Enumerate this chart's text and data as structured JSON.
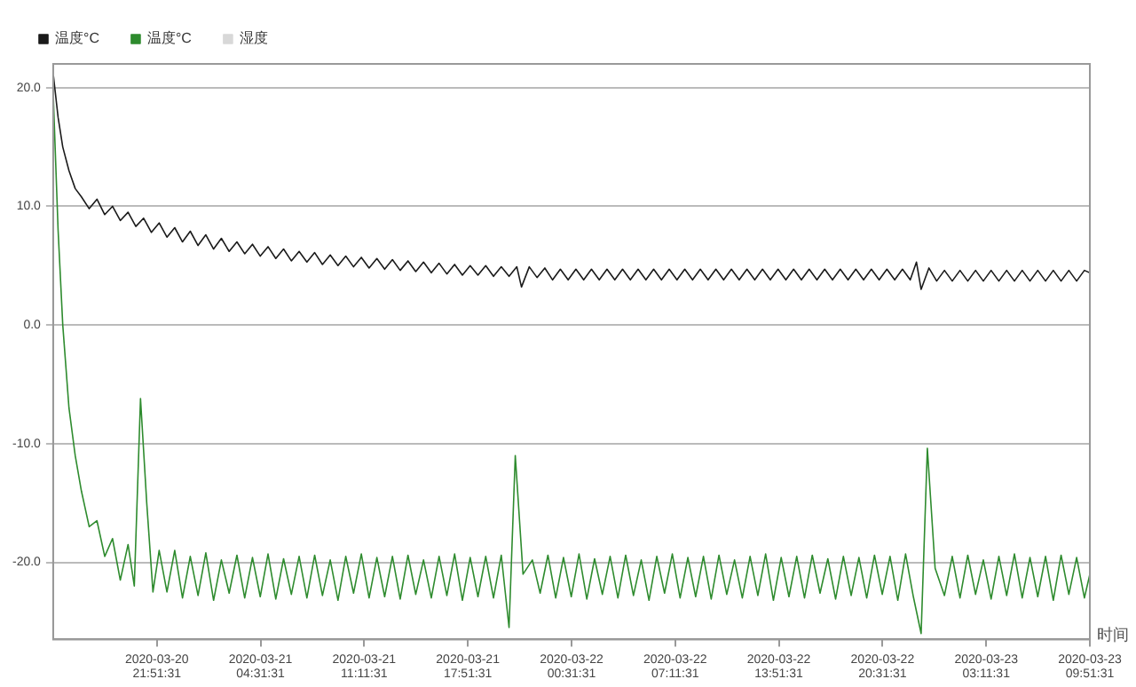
{
  "chart_data": {
    "type": "line",
    "xlabel": "时间",
    "legend": "top left",
    "grid": "y",
    "marker": "none",
    "line_style": "solid",
    "xlim": [
      "2020-03-20T15:11",
      "2020-03-23T09:51"
    ],
    "ylim": [
      -26.5,
      22
    ],
    "yticks": [
      {
        "value": 20,
        "label": "20.0"
      },
      {
        "value": 10,
        "label": "10.0"
      },
      {
        "value": 0,
        "label": "0.0"
      },
      {
        "value": -10,
        "label": "-10.0"
      },
      {
        "value": -20,
        "label": "-20.0"
      }
    ],
    "xticks": [
      {
        "value": "2020-03-20T21:51",
        "label": "2020-03-20 21:51:31"
      },
      {
        "value": "2020-03-21T04:31",
        "label": "2020-03-21 04:31:31"
      },
      {
        "value": "2020-03-21T11:11",
        "label": "2020-03-21 11:11:31"
      },
      {
        "value": "2020-03-21T17:51",
        "label": "2020-03-21 17:51:31"
      },
      {
        "value": "2020-03-22T00:31",
        "label": "2020-03-22 00:31:31"
      },
      {
        "value": "2020-03-22T07:11",
        "label": "2020-03-22 07:11:31"
      },
      {
        "value": "2020-03-22T13:51",
        "label": "2020-03-22 13:51:31"
      },
      {
        "value": "2020-03-22T20:31",
        "label": "2020-03-22 20:31:31"
      },
      {
        "value": "2020-03-23T03:11",
        "label": "2020-03-23 03:11:31"
      },
      {
        "value": "2020-03-23T09:51",
        "label": "2020-03-23 09:51:31"
      }
    ],
    "series": [
      {
        "name": "温度°C",
        "color": "#1a1a1a",
        "x": [
          "2020-03-20T15:12",
          "2020-03-20T15:30",
          "2020-03-20T15:48",
          "2020-03-20T16:12",
          "2020-03-20T16:36",
          "2020-03-20T17:00",
          "2020-03-20T17:30",
          "2020-03-20T18:00",
          "2020-03-20T18:30",
          "2020-03-20T19:00",
          "2020-03-20T19:30",
          "2020-03-20T20:00",
          "2020-03-20T20:30",
          "2020-03-20T21:00",
          "2020-03-20T21:30",
          "2020-03-20T22:00",
          "2020-03-20T22:30",
          "2020-03-20T23:00",
          "2020-03-20T23:30",
          "2020-03-21T00:00",
          "2020-03-21T00:30",
          "2020-03-21T01:00",
          "2020-03-21T01:30",
          "2020-03-21T02:00",
          "2020-03-21T02:30",
          "2020-03-21T03:00",
          "2020-03-21T03:30",
          "2020-03-21T04:00",
          "2020-03-21T04:30",
          "2020-03-21T05:00",
          "2020-03-21T05:30",
          "2020-03-21T06:00",
          "2020-03-21T06:30",
          "2020-03-21T07:00",
          "2020-03-21T07:30",
          "2020-03-21T08:00",
          "2020-03-21T08:30",
          "2020-03-21T09:00",
          "2020-03-21T09:30",
          "2020-03-21T10:00",
          "2020-03-21T10:30",
          "2020-03-21T11:00",
          "2020-03-21T11:30",
          "2020-03-21T12:00",
          "2020-03-21T12:30",
          "2020-03-21T13:00",
          "2020-03-21T13:30",
          "2020-03-21T14:00",
          "2020-03-21T14:30",
          "2020-03-21T15:00",
          "2020-03-21T15:30",
          "2020-03-21T16:00",
          "2020-03-21T16:30",
          "2020-03-21T17:00",
          "2020-03-21T17:30",
          "2020-03-21T18:00",
          "2020-03-21T18:30",
          "2020-03-21T19:00",
          "2020-03-21T19:30",
          "2020-03-21T20:00",
          "2020-03-21T20:30",
          "2020-03-21T21:00",
          "2020-03-21T21:18",
          "2020-03-21T21:48",
          "2020-03-21T22:18",
          "2020-03-21T22:48",
          "2020-03-21T23:18",
          "2020-03-21T23:48",
          "2020-03-22T00:18",
          "2020-03-22T00:48",
          "2020-03-22T01:18",
          "2020-03-22T01:48",
          "2020-03-22T02:18",
          "2020-03-22T02:48",
          "2020-03-22T03:18",
          "2020-03-22T03:48",
          "2020-03-22T04:18",
          "2020-03-22T04:48",
          "2020-03-22T05:18",
          "2020-03-22T05:48",
          "2020-03-22T06:18",
          "2020-03-22T06:48",
          "2020-03-22T07:18",
          "2020-03-22T07:48",
          "2020-03-22T08:18",
          "2020-03-22T08:48",
          "2020-03-22T09:18",
          "2020-03-22T09:48",
          "2020-03-22T10:18",
          "2020-03-22T10:48",
          "2020-03-22T11:18",
          "2020-03-22T11:48",
          "2020-03-22T12:18",
          "2020-03-22T12:48",
          "2020-03-22T13:18",
          "2020-03-22T13:48",
          "2020-03-22T14:18",
          "2020-03-22T14:48",
          "2020-03-22T15:18",
          "2020-03-22T15:48",
          "2020-03-22T16:18",
          "2020-03-22T16:48",
          "2020-03-22T17:18",
          "2020-03-22T17:48",
          "2020-03-22T18:18",
          "2020-03-22T18:48",
          "2020-03-22T19:18",
          "2020-03-22T19:48",
          "2020-03-22T20:18",
          "2020-03-22T20:48",
          "2020-03-22T21:18",
          "2020-03-22T21:48",
          "2020-03-22T22:18",
          "2020-03-22T22:42",
          "2020-03-22T23:00",
          "2020-03-22T23:30",
          "2020-03-23T00:00",
          "2020-03-23T00:30",
          "2020-03-23T01:00",
          "2020-03-23T01:30",
          "2020-03-23T02:00",
          "2020-03-23T02:30",
          "2020-03-23T03:00",
          "2020-03-23T03:30",
          "2020-03-23T04:00",
          "2020-03-23T04:30",
          "2020-03-23T05:00",
          "2020-03-23T05:30",
          "2020-03-23T06:00",
          "2020-03-23T06:30",
          "2020-03-23T07:00",
          "2020-03-23T07:30",
          "2020-03-23T08:00",
          "2020-03-23T08:30",
          "2020-03-23T09:00",
          "2020-03-23T09:30",
          "2020-03-23T09:51"
        ],
        "values": [
          21,
          17.5,
          15,
          13,
          11.5,
          10.8,
          9.8,
          10.6,
          9.3,
          10.0,
          8.8,
          9.5,
          8.3,
          9.0,
          7.8,
          8.6,
          7.4,
          8.2,
          7.0,
          7.9,
          6.7,
          7.6,
          6.4,
          7.3,
          6.2,
          7.0,
          6.0,
          6.8,
          5.8,
          6.6,
          5.6,
          6.4,
          5.4,
          6.2,
          5.3,
          6.1,
          5.1,
          5.9,
          5.0,
          5.8,
          4.9,
          5.7,
          4.8,
          5.6,
          4.7,
          5.5,
          4.6,
          5.4,
          4.5,
          5.3,
          4.4,
          5.2,
          4.3,
          5.1,
          4.2,
          5.0,
          4.2,
          5.0,
          4.1,
          4.9,
          4.1,
          4.9,
          3.2,
          4.9,
          4.0,
          4.8,
          3.8,
          4.7,
          3.8,
          4.7,
          3.8,
          4.7,
          3.8,
          4.7,
          3.8,
          4.7,
          3.8,
          4.7,
          3.8,
          4.7,
          3.8,
          4.7,
          3.8,
          4.7,
          3.8,
          4.7,
          3.8,
          4.7,
          3.8,
          4.7,
          3.8,
          4.7,
          3.8,
          4.7,
          3.8,
          4.7,
          3.8,
          4.7,
          3.8,
          4.7,
          3.8,
          4.7,
          3.8,
          4.7,
          3.8,
          4.7,
          3.8,
          4.7,
          3.8,
          4.7,
          3.8,
          4.7,
          3.8,
          5.3,
          3.0,
          4.8,
          3.7,
          4.6,
          3.7,
          4.6,
          3.7,
          4.6,
          3.7,
          4.6,
          3.7,
          4.6,
          3.7,
          4.6,
          3.7,
          4.6,
          3.7,
          4.6,
          3.7,
          4.6,
          3.7,
          4.6,
          4.4
        ]
      },
      {
        "name": "温度°C",
        "color": "#2e8b2e",
        "x": [
          "2020-03-20T15:12",
          "2020-03-20T15:30",
          "2020-03-20T15:48",
          "2020-03-20T16:12",
          "2020-03-20T16:36",
          "2020-03-20T17:00",
          "2020-03-20T17:30",
          "2020-03-20T18:00",
          "2020-03-20T18:30",
          "2020-03-20T19:00",
          "2020-03-20T19:30",
          "2020-03-20T20:00",
          "2020-03-20T20:24",
          "2020-03-20T20:48",
          "2020-03-20T21:12",
          "2020-03-20T21:36",
          "2020-03-20T22:00",
          "2020-03-20T22:30",
          "2020-03-20T23:00",
          "2020-03-20T23:30",
          "2020-03-21T00:00",
          "2020-03-21T00:30",
          "2020-03-21T01:00",
          "2020-03-21T01:30",
          "2020-03-21T02:00",
          "2020-03-21T02:30",
          "2020-03-21T03:00",
          "2020-03-21T03:30",
          "2020-03-21T04:00",
          "2020-03-21T04:30",
          "2020-03-21T05:00",
          "2020-03-21T05:30",
          "2020-03-21T06:00",
          "2020-03-21T06:30",
          "2020-03-21T07:00",
          "2020-03-21T07:30",
          "2020-03-21T08:00",
          "2020-03-21T08:30",
          "2020-03-21T09:00",
          "2020-03-21T09:30",
          "2020-03-21T10:00",
          "2020-03-21T10:30",
          "2020-03-21T11:00",
          "2020-03-21T11:30",
          "2020-03-21T12:00",
          "2020-03-21T12:30",
          "2020-03-21T13:00",
          "2020-03-21T13:30",
          "2020-03-21T14:00",
          "2020-03-21T14:30",
          "2020-03-21T15:00",
          "2020-03-21T15:30",
          "2020-03-21T16:00",
          "2020-03-21T16:30",
          "2020-03-21T17:00",
          "2020-03-21T17:30",
          "2020-03-21T18:00",
          "2020-03-21T18:30",
          "2020-03-21T19:00",
          "2020-03-21T19:30",
          "2020-03-21T20:00",
          "2020-03-21T20:30",
          "2020-03-21T20:54",
          "2020-03-21T21:24",
          "2020-03-21T22:00",
          "2020-03-21T22:30",
          "2020-03-21T23:00",
          "2020-03-21T23:30",
          "2020-03-22T00:00",
          "2020-03-22T00:30",
          "2020-03-22T01:00",
          "2020-03-22T01:30",
          "2020-03-22T02:00",
          "2020-03-22T02:30",
          "2020-03-22T03:00",
          "2020-03-22T03:30",
          "2020-03-22T04:00",
          "2020-03-22T04:30",
          "2020-03-22T05:00",
          "2020-03-22T05:30",
          "2020-03-22T06:00",
          "2020-03-22T06:30",
          "2020-03-22T07:00",
          "2020-03-22T07:30",
          "2020-03-22T08:00",
          "2020-03-22T08:30",
          "2020-03-22T09:00",
          "2020-03-22T09:30",
          "2020-03-22T10:00",
          "2020-03-22T10:30",
          "2020-03-22T11:00",
          "2020-03-22T11:30",
          "2020-03-22T12:00",
          "2020-03-22T12:30",
          "2020-03-22T13:00",
          "2020-03-22T13:30",
          "2020-03-22T14:00",
          "2020-03-22T14:30",
          "2020-03-22T15:00",
          "2020-03-22T15:30",
          "2020-03-22T16:00",
          "2020-03-22T16:30",
          "2020-03-22T17:00",
          "2020-03-22T17:30",
          "2020-03-22T18:00",
          "2020-03-22T18:30",
          "2020-03-22T19:00",
          "2020-03-22T19:30",
          "2020-03-22T20:00",
          "2020-03-22T20:30",
          "2020-03-22T21:00",
          "2020-03-22T21:30",
          "2020-03-22T22:00",
          "2020-03-22T22:30",
          "2020-03-22T23:00",
          "2020-03-22T23:24",
          "2020-03-22T23:54",
          "2020-03-23T00:30",
          "2020-03-23T01:00",
          "2020-03-23T01:30",
          "2020-03-23T02:00",
          "2020-03-23T02:30",
          "2020-03-23T03:00",
          "2020-03-23T03:30",
          "2020-03-23T04:00",
          "2020-03-23T04:30",
          "2020-03-23T05:00",
          "2020-03-23T05:30",
          "2020-03-23T06:00",
          "2020-03-23T06:30",
          "2020-03-23T07:00",
          "2020-03-23T07:30",
          "2020-03-23T08:00",
          "2020-03-23T08:30",
          "2020-03-23T09:00",
          "2020-03-23T09:30",
          "2020-03-23T09:51"
        ],
        "values": [
          19,
          8,
          0,
          -7,
          -11,
          -14,
          -17,
          -16.5,
          -19.5,
          -18,
          -21.5,
          -18.5,
          -22,
          -6.2,
          -15,
          -22.5,
          -19,
          -22.5,
          -19,
          -23,
          -19.5,
          -22.8,
          -19.2,
          -23.2,
          -19.8,
          -22.6,
          -19.4,
          -23,
          -19.6,
          -22.9,
          -19.3,
          -23.1,
          -19.7,
          -22.7,
          -19.5,
          -23,
          -19.4,
          -22.8,
          -19.8,
          -23.2,
          -19.5,
          -22.6,
          -19.3,
          -23,
          -19.6,
          -22.9,
          -19.5,
          -23.1,
          -19.4,
          -22.7,
          -19.8,
          -23,
          -19.5,
          -22.8,
          -19.3,
          -23.2,
          -19.6,
          -22.9,
          -19.5,
          -23,
          -19.4,
          -25.5,
          -11,
          -21,
          -19.8,
          -22.6,
          -19.4,
          -23,
          -19.6,
          -22.9,
          -19.3,
          -23.1,
          -19.7,
          -22.7,
          -19.5,
          -23,
          -19.4,
          -22.8,
          -19.8,
          -23.2,
          -19.5,
          -22.6,
          -19.3,
          -23,
          -19.6,
          -22.9,
          -19.5,
          -23.1,
          -19.4,
          -22.7,
          -19.8,
          -23,
          -19.5,
          -22.8,
          -19.3,
          -23.2,
          -19.6,
          -22.9,
          -19.5,
          -23,
          -19.4,
          -22.6,
          -19.7,
          -23.1,
          -19.5,
          -22.8,
          -19.6,
          -23,
          -19.4,
          -22.7,
          -19.5,
          -23.2,
          -19.3,
          -22.9,
          -26,
          -10.4,
          -20.5,
          -22.8,
          -19.5,
          -23,
          -19.4,
          -22.7,
          -19.8,
          -23.1,
          -19.5,
          -22.8,
          -19.3,
          -23,
          -19.6,
          -22.9,
          -19.5,
          -23.2,
          -19.4,
          -22.7,
          -19.6,
          -23,
          -21
        ]
      },
      {
        "name": "湿度",
        "color": "#d8d8d8"
      }
    ]
  }
}
